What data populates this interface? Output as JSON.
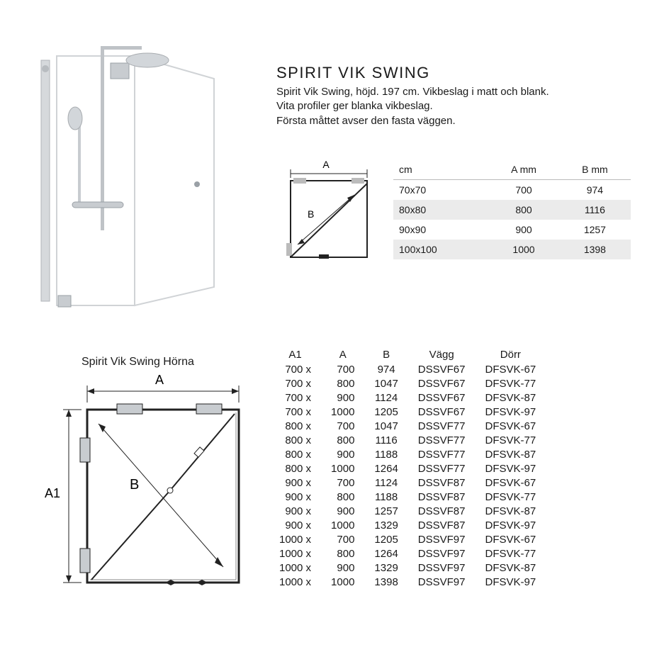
{
  "heading": "SPIRIT VIK SWING",
  "description_lines": [
    "Spirit Vik Swing, höjd. 197 cm. Vikbeslag i matt och blank.",
    "Vita profiler ger blanka vikbeslag.",
    "Första måttet avser den fasta väggen."
  ],
  "diagram1": {
    "label_a": "A",
    "label_b": "B"
  },
  "small_table": {
    "headers": [
      "cm",
      "A mm",
      "B mm"
    ],
    "rows": [
      {
        "cm": "70x70",
        "a": "700",
        "b": "974",
        "shade": false
      },
      {
        "cm": "80x80",
        "a": "800",
        "b": "1116",
        "shade": true
      },
      {
        "cm": "90x90",
        "a": "900",
        "b": "1257",
        "shade": false
      },
      {
        "cm": "100x100",
        "a": "1000",
        "b": "1398",
        "shade": true
      }
    ]
  },
  "diagram2": {
    "caption": "Spirit Vik Swing Hörna",
    "label_a": "A",
    "label_a1": "A1",
    "label_b": "B"
  },
  "big_table": {
    "headers": [
      "A1",
      "A",
      "B",
      "Vägg",
      "Dörr"
    ],
    "rows": [
      {
        "a1": "700",
        "a": "700",
        "b": "974",
        "vagg": "DSSVF67",
        "dorr": "DFSVK-67"
      },
      {
        "a1": "700",
        "a": "800",
        "b": "1047",
        "vagg": "DSSVF67",
        "dorr": "DFSVK-77"
      },
      {
        "a1": "700",
        "a": "900",
        "b": "1124",
        "vagg": "DSSVF67",
        "dorr": "DFSVK-87"
      },
      {
        "a1": "700",
        "a": "1000",
        "b": "1205",
        "vagg": "DSSVF67",
        "dorr": "DFSVK-97"
      },
      {
        "a1": "800",
        "a": "700",
        "b": "1047",
        "vagg": "DSSVF77",
        "dorr": "DFSVK-67"
      },
      {
        "a1": "800",
        "a": "800",
        "b": "1116",
        "vagg": "DSSVF77",
        "dorr": "DFSVK-77"
      },
      {
        "a1": "800",
        "a": "900",
        "b": "1188",
        "vagg": "DSSVF77",
        "dorr": "DFSVK-87"
      },
      {
        "a1": "800",
        "a": "1000",
        "b": "1264",
        "vagg": "DSSVF77",
        "dorr": "DFSVK-97"
      },
      {
        "a1": "900",
        "a": "700",
        "b": "1124",
        "vagg": "DSSVF87",
        "dorr": "DFSVK-67"
      },
      {
        "a1": "900",
        "a": "800",
        "b": "1188",
        "vagg": "DSSVF87",
        "dorr": "DFSVK-77"
      },
      {
        "a1": "900",
        "a": "900",
        "b": "1257",
        "vagg": "DSSVF87",
        "dorr": "DFSVK-87"
      },
      {
        "a1": "900",
        "a": "1000",
        "b": "1329",
        "vagg": "DSSVF87",
        "dorr": "DFSVK-97"
      },
      {
        "a1": "1000",
        "a": "700",
        "b": "1205",
        "vagg": "DSSVF97",
        "dorr": "DFSVK-67"
      },
      {
        "a1": "1000",
        "a": "800",
        "b": "1264",
        "vagg": "DSSVF97",
        "dorr": "DFSVK-77"
      },
      {
        "a1": "1000",
        "a": "900",
        "b": "1329",
        "vagg": "DSSVF97",
        "dorr": "DFSVK-87"
      },
      {
        "a1": "1000",
        "a": "1000",
        "b": "1398",
        "vagg": "DSSVF97",
        "dorr": "DFSVK-97"
      }
    ]
  },
  "colors": {
    "text": "#1a1a1a",
    "shade": "#ebebeb",
    "rule": "#bbbbbb",
    "diagram_stroke": "#222222",
    "diagram_stroke_light": "#888888",
    "product_metal": "#c8ccd0",
    "product_metal_dark": "#9aa0a6"
  }
}
